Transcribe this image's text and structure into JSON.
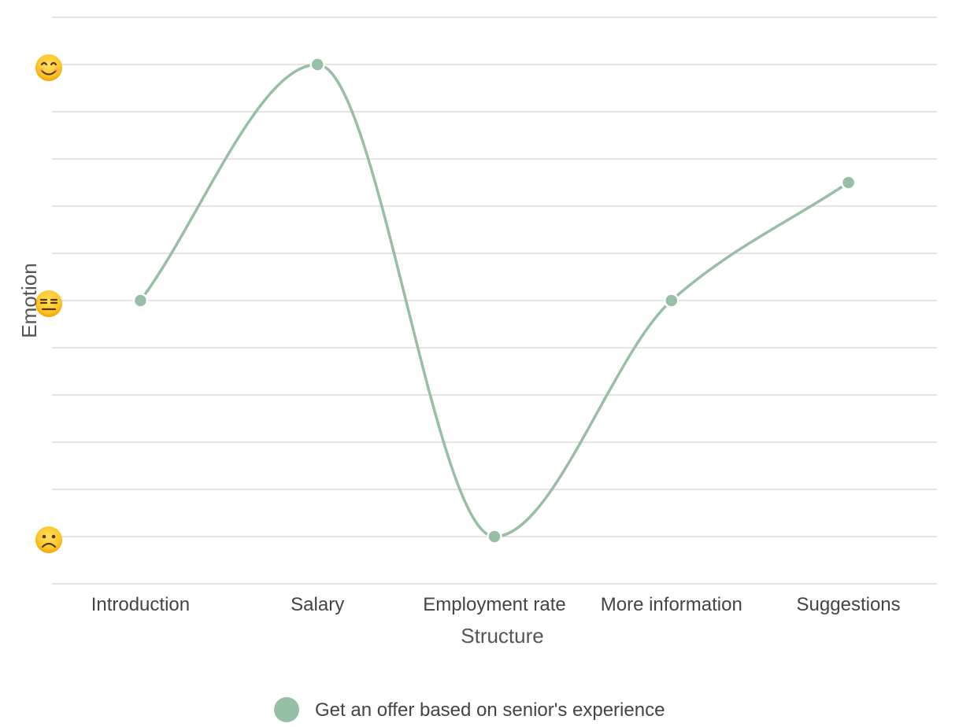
{
  "chart_data": {
    "type": "line",
    "categories": [
      "Introduction",
      "Salary",
      "Employment rate",
      "More information",
      "Suggestions"
    ],
    "series": [
      {
        "name": "Get an offer based on senior's experience",
        "values": [
          0,
          5,
          -5,
          0,
          2.5
        ],
        "color": "#96bfa6"
      }
    ],
    "xlabel": "Structure",
    "ylabel": "Emotion",
    "ylim": [
      -6,
      6
    ],
    "grid_step": 1,
    "y_icons": [
      {
        "value": 5,
        "icon": "smiling-face-icon"
      },
      {
        "value": 0,
        "icon": "expressionless-face-icon"
      },
      {
        "value": -5,
        "icon": "frowning-face-icon"
      }
    ],
    "smooth": true,
    "grid": true,
    "legend_position": "bottom-center"
  }
}
